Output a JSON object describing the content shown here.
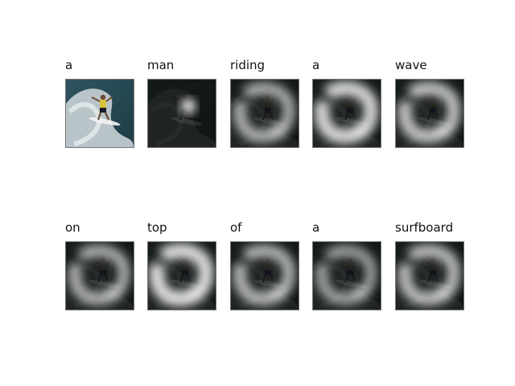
{
  "figure": {
    "panels": [
      {
        "word": "a",
        "kind": "original"
      },
      {
        "word": "man",
        "kind": "attention"
      },
      {
        "word": "riding",
        "kind": "attention"
      },
      {
        "word": "a",
        "kind": "attention"
      },
      {
        "word": "wave",
        "kind": "attention"
      },
      {
        "word": "on",
        "kind": "attention"
      },
      {
        "word": "top",
        "kind": "attention"
      },
      {
        "word": "of",
        "kind": "attention"
      },
      {
        "word": "a",
        "kind": "attention"
      },
      {
        "word": "surfboard",
        "kind": "attention"
      }
    ],
    "attention_strength": [
      0,
      0.15,
      0.55,
      0.85,
      0.7,
      0.55,
      0.9,
      0.6,
      0.45,
      0.65
    ],
    "colors": {
      "background": "#ffffff",
      "wave": "#c9d2d6",
      "sea": "#2f5560",
      "shirt": "#d9c23a",
      "shorts": "#1a1a2a",
      "board": "#f2f2f2",
      "attention_glow": "#ffffff",
      "attention_dark": "#0d0f0e"
    }
  }
}
